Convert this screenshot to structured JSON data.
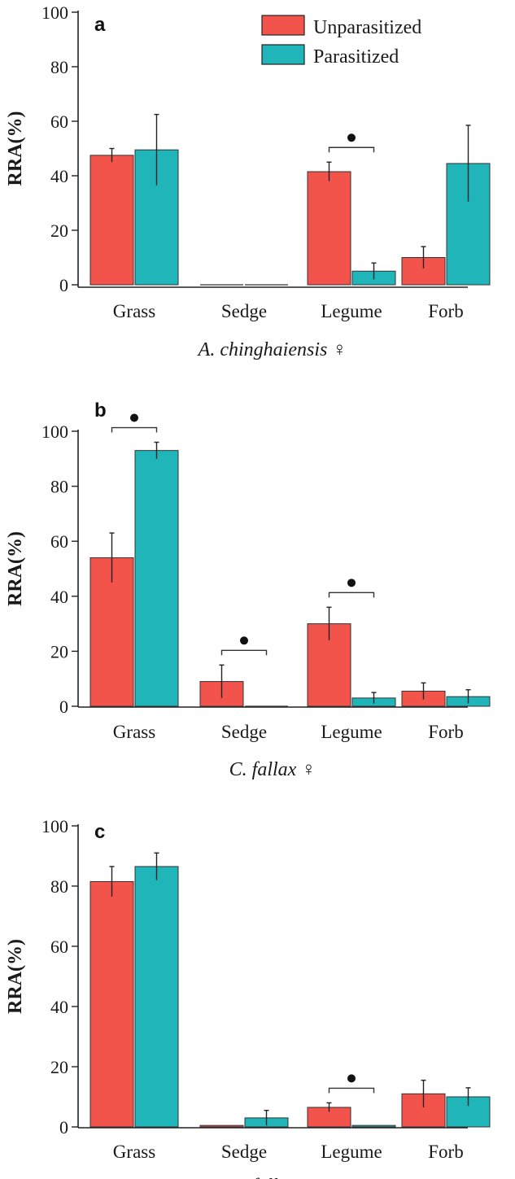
{
  "colors": {
    "unparasitized": "#f2544c",
    "parasitized": "#1fb5b9",
    "axis": "#222222"
  },
  "legend": {
    "items": [
      {
        "label": "Unparasitized",
        "color": "#f2544c"
      },
      {
        "label": "Parasitized",
        "color": "#1fb5b9"
      }
    ]
  },
  "chart_data": [
    {
      "type": "bar",
      "panel": "a",
      "xlabel": "A. chinghaiensis ♀",
      "ylabel": "RRA(%)",
      "ylim": [
        0,
        100
      ],
      "yticks": [
        0,
        20,
        40,
        60,
        80,
        100
      ],
      "categories": [
        "Grass",
        "Sedge",
        "Legume",
        "Forb"
      ],
      "series": [
        {
          "name": "Unparasitized",
          "values": [
            47.5,
            0,
            41.5,
            10
          ],
          "errors": [
            2.5,
            0,
            3.5,
            4
          ]
        },
        {
          "name": "Parasitized",
          "values": [
            49.5,
            0,
            5,
            44.5
          ],
          "errors": [
            13,
            0,
            3,
            14
          ]
        }
      ],
      "significance": [
        2
      ]
    },
    {
      "type": "bar",
      "panel": "b",
      "xlabel": "C. fallax ♀",
      "ylabel": "RRA(%)",
      "ylim": [
        0,
        100
      ],
      "yticks": [
        0,
        20,
        40,
        60,
        80,
        100
      ],
      "categories": [
        "Grass",
        "Sedge",
        "Legume",
        "Forb"
      ],
      "series": [
        {
          "name": "Unparasitized",
          "values": [
            54,
            9,
            30,
            5.5
          ],
          "errors": [
            9,
            6,
            6,
            3
          ]
        },
        {
          "name": "Parasitized",
          "values": [
            93,
            0,
            3,
            3.5
          ],
          "errors": [
            3,
            0,
            2,
            2.5
          ]
        }
      ],
      "significance": [
        0,
        1,
        2
      ]
    },
    {
      "type": "bar",
      "panel": "c",
      "xlabel": "C. fallax ♂",
      "ylabel": "RRA(%)",
      "ylim": [
        0,
        100
      ],
      "yticks": [
        0,
        20,
        40,
        60,
        80,
        100
      ],
      "categories": [
        "Grass",
        "Sedge",
        "Legume",
        "Forb"
      ],
      "series": [
        {
          "name": "Unparasitized",
          "values": [
            81.5,
            0.5,
            6.5,
            11
          ],
          "errors": [
            5,
            0,
            1.5,
            4.5
          ]
        },
        {
          "name": "Parasitized",
          "values": [
            86.5,
            3,
            0.5,
            10
          ],
          "errors": [
            4.5,
            2.5,
            0,
            3
          ]
        }
      ],
      "significance": [
        2
      ]
    }
  ]
}
